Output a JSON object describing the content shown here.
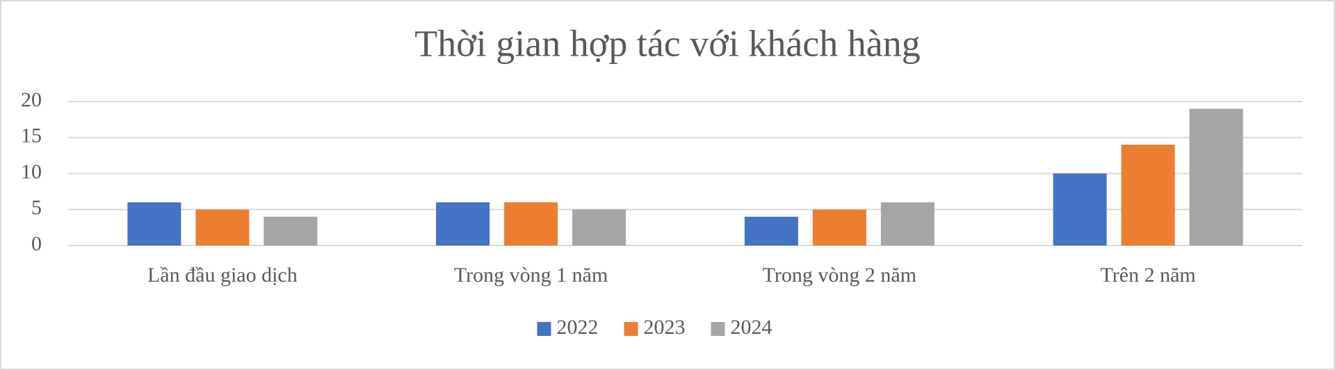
{
  "chart_data": {
    "type": "bar",
    "title": "Thời gian hợp tác với khách hàng",
    "categories": [
      "Lần đầu giao dịch",
      "Trong vòng 1 năm",
      "Trong vòng 2 năm",
      "Trên 2 năm"
    ],
    "series": [
      {
        "name": "2022",
        "color": "#4472c4",
        "values": [
          6,
          6,
          4,
          10
        ]
      },
      {
        "name": "2023",
        "color": "#ed7d31",
        "values": [
          5,
          6,
          5,
          14
        ]
      },
      {
        "name": "2024",
        "color": "#a5a5a5",
        "values": [
          4,
          5,
          6,
          19
        ]
      }
    ],
    "ylim": [
      0,
      20
    ],
    "yticks": [
      0,
      5,
      10,
      15,
      20
    ],
    "grid": true,
    "legend": "bottom"
  }
}
